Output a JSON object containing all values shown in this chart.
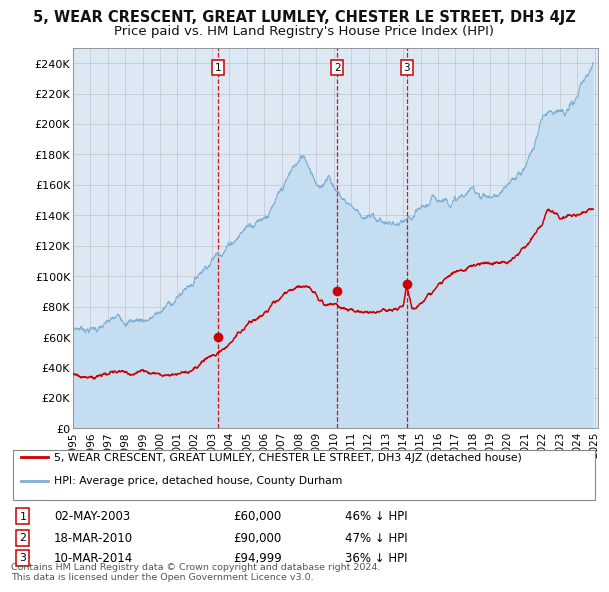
{
  "title": "5, WEAR CRESCENT, GREAT LUMLEY, CHESTER LE STREET, DH3 4JZ",
  "subtitle": "Price paid vs. HM Land Registry's House Price Index (HPI)",
  "title_fontsize": 10.5,
  "subtitle_fontsize": 9.5,
  "hpi_color": "#7bafd4",
  "hpi_fill_color": "#c5ddf0",
  "property_color": "#cc0000",
  "dashed_line_color": "#cc0000",
  "plot_bg_color": "#dce9f5",
  "sale_dates": [
    2003.33,
    2010.21,
    2014.19
  ],
  "sale_prices": [
    60000,
    90000,
    94999
  ],
  "sale_labels": [
    "1",
    "2",
    "3"
  ],
  "sale_date_strs": [
    "02-MAY-2003",
    "18-MAR-2010",
    "10-MAR-2014"
  ],
  "sale_pct_below": [
    "46%",
    "47%",
    "36%"
  ],
  "legend_property": "5, WEAR CRESCENT, GREAT LUMLEY, CHESTER LE STREET, DH3 4JZ (detached house)",
  "legend_hpi": "HPI: Average price, detached house, County Durham",
  "footer1": "Contains HM Land Registry data © Crown copyright and database right 2024.",
  "footer2": "This data is licensed under the Open Government Licence v3.0.",
  "ylim": [
    0,
    250000
  ],
  "yticks": [
    0,
    20000,
    40000,
    60000,
    80000,
    100000,
    120000,
    140000,
    160000,
    180000,
    200000,
    220000,
    240000
  ]
}
